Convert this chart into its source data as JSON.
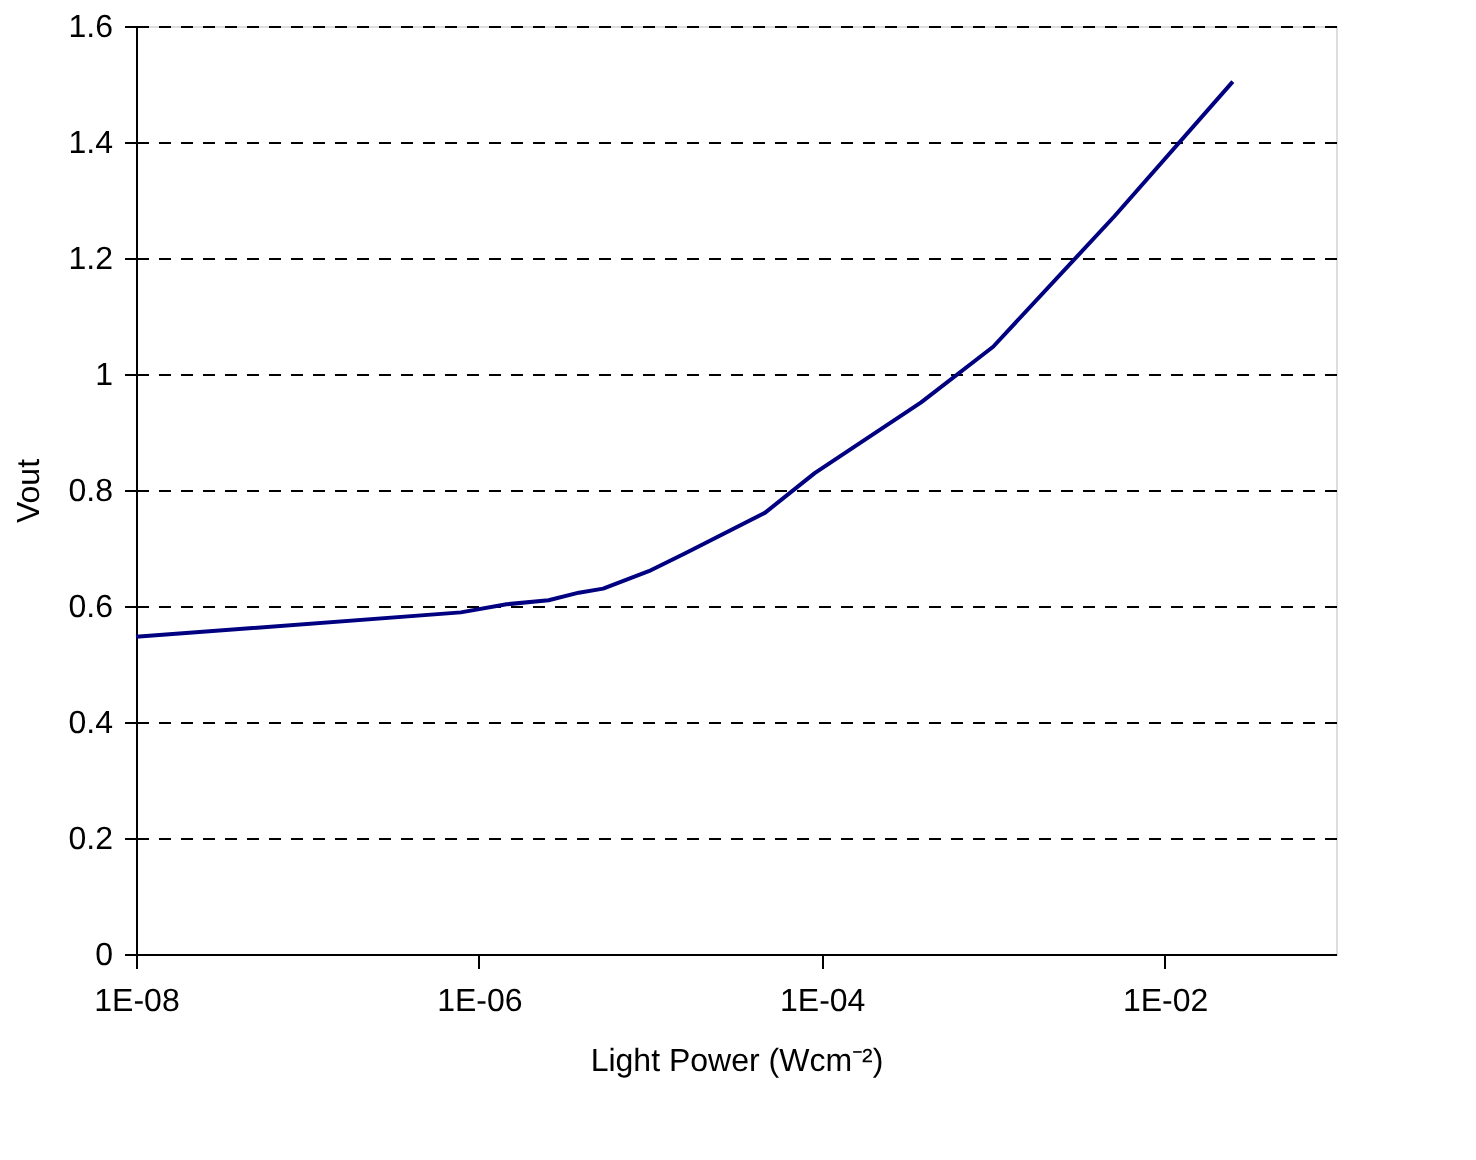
{
  "chart_data": {
    "type": "line",
    "xlabel": "Light Power (Wcm⁻²)",
    "ylabel": "Vout",
    "log": "x",
    "grid": "y",
    "line_style": "solid",
    "marker": "none",
    "x": [
      1e-08,
      7.85e-07,
      1.45e-06,
      2.55e-06,
      3.83e-06,
      5.31e-06,
      9.8e-06,
      1.6e-05,
      4.68e-05,
      9.1e-05,
      0.00038,
      0.001,
      0.0051,
      0.025
    ],
    "series": [
      {
        "color": "#000080",
        "values": [
          0.547,
          0.589,
          0.603,
          0.61,
          0.623,
          0.63,
          0.66,
          0.691,
          0.761,
          0.829,
          0.951,
          1.047,
          1.272,
          1.504
        ]
      }
    ],
    "xlim": [
      1e-08,
      0.1
    ],
    "xticks": [
      {
        "value": 1e-08,
        "label": "1E-08"
      },
      {
        "value": 1e-06,
        "label": "1E-06"
      },
      {
        "value": 0.0001,
        "label": "1E-04"
      },
      {
        "value": 0.01,
        "label": "1E-02"
      }
    ],
    "ylim": [
      0,
      1.6
    ],
    "yticks": [
      0,
      0.2,
      0.4,
      0.6,
      0.8,
      1,
      1.2,
      1.4,
      1.6
    ]
  }
}
